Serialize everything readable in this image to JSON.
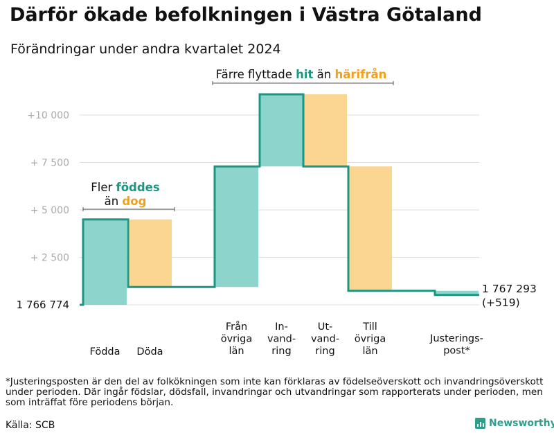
{
  "title": "Därför ökade befolkningen i Västra Götaland",
  "subtitle": "Förändringar under andra kvartalet 2024",
  "chart_data": {
    "type": "waterfall",
    "base_label": "1  766  774",
    "base": 1766774,
    "end_label": "1 767 293",
    "end_change": "(+519)",
    "ylim": [
      0,
      11200
    ],
    "yticks": [
      {
        "value": 2500,
        "label": "+  2  500"
      },
      {
        "value": 5000,
        "label": "+  5  000"
      },
      {
        "value": 7500,
        "label": "+  7  500"
      },
      {
        "value": 10000,
        "label": "+10    000"
      }
    ],
    "categories": [
      {
        "label": [
          "Födda"
        ],
        "value": 4500,
        "color": "#8dd5cc"
      },
      {
        "label": [
          "Döda"
        ],
        "value": -3560,
        "color": "#fad690"
      },
      {
        "label": [
          "Från",
          "övriga",
          "län"
        ],
        "value": 6350,
        "color": "#8dd5cc"
      },
      {
        "label": [
          "In-",
          "vand-",
          "ring"
        ],
        "value": 3800,
        "color": "#8dd5cc"
      },
      {
        "label": [
          "Ut-",
          "vand-",
          "ring"
        ],
        "value": -3800,
        "color": "#fad690"
      },
      {
        "label": [
          "Till",
          "övriga",
          "län"
        ],
        "value": -6550,
        "color": "#fad690"
      },
      {
        "label": [
          "Justerings-",
          "post*"
        ],
        "value": -221,
        "color": "#8dd5cc"
      }
    ],
    "annotations": [
      {
        "plain_before": "Fler ",
        "teal": "föddes",
        "plain_mid": "än ",
        "orange": "dog"
      },
      {
        "plain_before": "Färre flyttade ",
        "teal": "hit",
        "plain_mid": " än ",
        "orange": "härifrån"
      }
    ]
  },
  "footnote": "*Justeringsposten är den del av folkökningen som inte kan förklaras av födelseöverskott och invandringsöverskott under perioden. Där ingår födslar, dödsfall, invandringar och utvandringar som rapporterats under perioden, men som inträffat före periodens början.",
  "source": "Källa: SCB",
  "brand": "Newsworthy",
  "colors": {
    "line": "#1a9683",
    "teal": "#8dd5cc",
    "orange": "#fad690",
    "grid": "#dedede",
    "tick": "#aaaaaa"
  }
}
